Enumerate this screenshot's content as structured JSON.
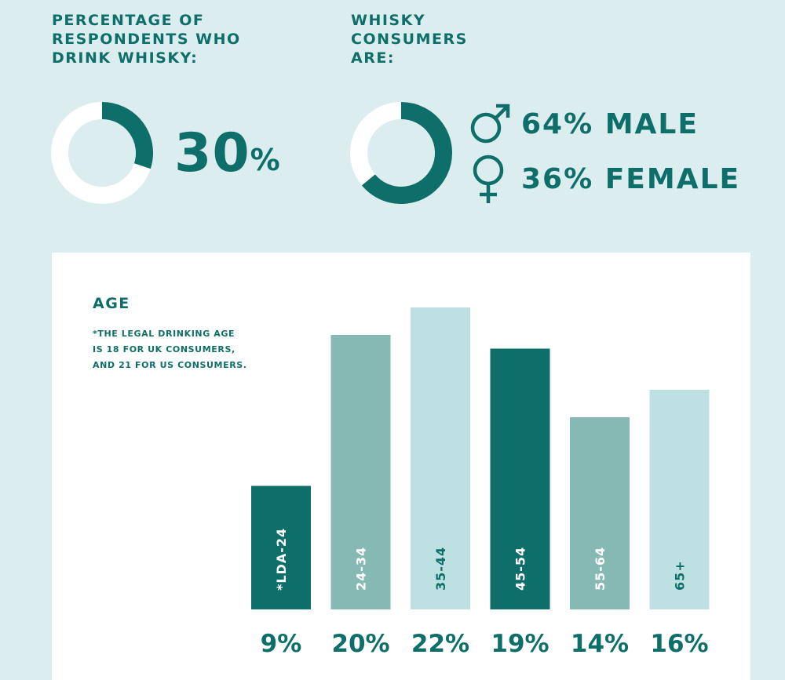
{
  "header": {
    "left_title": "PERCENTAGE OF\nRESPONDENTS WHO\nDRINK WHISKY:",
    "right_title": "WHISKY\nCONSUMERS\nARE:"
  },
  "whisky_drinkers": {
    "value": 30,
    "number_text": "30",
    "unit_text": "%"
  },
  "gender": {
    "male_value": 64,
    "female_value": 36,
    "male_label": "64% MALE",
    "female_label": "36% FEMALE",
    "male_icon": "male-symbol-icon",
    "female_icon": "female-symbol-icon"
  },
  "colors": {
    "background": "#dcedf0",
    "dark_teal": "#0e6e69",
    "mid_teal": "#86b9b4",
    "light_teal": "#bde0e2",
    "donut_track": "#ffffff"
  },
  "age_panel": {
    "title": "AGE",
    "note": "*THE LEGAL DRINKING AGE\n IS 18 FOR UK CONSUMERS,\n AND 21 FOR US CONSUMERS."
  },
  "chart_data": [
    {
      "type": "pie",
      "style": "donut",
      "values": [
        30,
        70
      ],
      "colors": [
        "#0e6e69",
        "#ffffff"
      ]
    },
    {
      "type": "pie",
      "style": "donut",
      "categories": [
        "MALE",
        "FEMALE"
      ],
      "values": [
        64,
        36
      ],
      "colors": [
        "#0e6e69",
        "#ffffff"
      ]
    },
    {
      "type": "bar",
      "title": "AGE",
      "categories": [
        "*LDA-24",
        "24-34",
        "35-44",
        "45-54",
        "55-64",
        "65+"
      ],
      "values": [
        9,
        20,
        22,
        19,
        14,
        16
      ],
      "value_labels": [
        "9%",
        "20%",
        "22%",
        "19%",
        "14%",
        "16%"
      ],
      "colors": [
        "#0e6e69",
        "#86b9b4",
        "#bde0e2",
        "#0e6e69",
        "#86b9b4",
        "#bde0e2"
      ],
      "label_colors": [
        "#ffffff",
        "#ffffff",
        "#0e6e69",
        "#ffffff",
        "#ffffff",
        "#0e6e69"
      ],
      "ylim": [
        0,
        22
      ],
      "grid": false
    }
  ]
}
